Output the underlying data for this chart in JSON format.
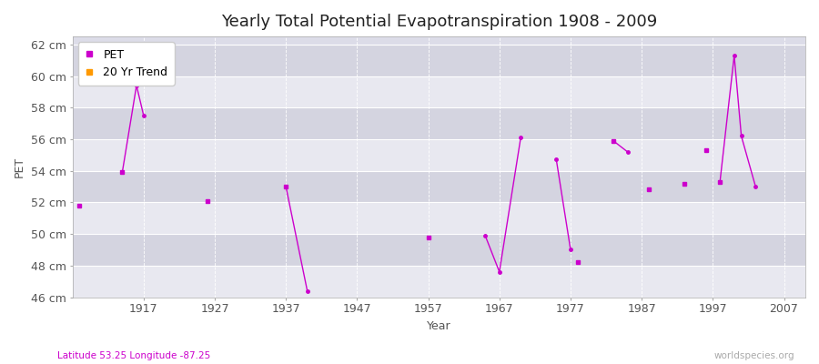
{
  "title": "Yearly Total Potential Evapotranspiration 1908 - 2009",
  "xlabel": "Year",
  "ylabel": "PET",
  "subtitle_left": "Latitude 53.25 Longitude -87.25",
  "subtitle_right": "worldspecies.org",
  "ylim": [
    46,
    62.5
  ],
  "yticks": [
    46,
    48,
    50,
    52,
    54,
    56,
    58,
    60,
    62
  ],
  "ytick_labels": [
    "46 cm",
    "48 cm",
    "50 cm",
    "52 cm",
    "54 cm",
    "56 cm",
    "58 cm",
    "60 cm",
    "62 cm"
  ],
  "xlim": [
    1907,
    2010
  ],
  "xticks": [
    1917,
    1927,
    1937,
    1947,
    1957,
    1967,
    1977,
    1987,
    1997,
    2007
  ],
  "fig_bg_color": "#ffffff",
  "plot_bg_color": "#dcdce8",
  "band_color_light": "#e8e8f0",
  "band_color_dark": "#d4d4e0",
  "grid_color": "#ffffff",
  "pet_color": "#cc00cc",
  "trend_color": "#ff9900",
  "isolated_points": [
    [
      1908,
      51.8
    ],
    [
      1914,
      53.9
    ],
    [
      1926,
      52.1
    ],
    [
      1937,
      53.0
    ],
    [
      1957,
      49.8
    ],
    [
      1978,
      48.2
    ],
    [
      1983,
      55.9
    ],
    [
      1988,
      52.8
    ],
    [
      1993,
      53.2
    ],
    [
      1996,
      55.3
    ],
    [
      1998,
      53.3
    ]
  ],
  "connected_segments": [
    [
      [
        1914,
        53.9
      ],
      [
        1916,
        59.4
      ],
      [
        1917,
        57.5
      ]
    ],
    [
      [
        1937,
        53.0
      ],
      [
        1940,
        46.4
      ]
    ],
    [
      [
        1965,
        49.9
      ],
      [
        1967,
        47.6
      ],
      [
        1970,
        56.1
      ]
    ],
    [
      [
        1975,
        54.7
      ],
      [
        1977,
        49.0
      ]
    ],
    [
      [
        1983,
        55.9
      ],
      [
        1985,
        55.2
      ]
    ],
    [
      [
        1998,
        53.3
      ],
      [
        2000,
        61.3
      ],
      [
        2001,
        56.2
      ],
      [
        2003,
        53.0
      ]
    ]
  ],
  "title_fontsize": 13,
  "label_fontsize": 9,
  "tick_fontsize": 9,
  "legend_fontsize": 9
}
